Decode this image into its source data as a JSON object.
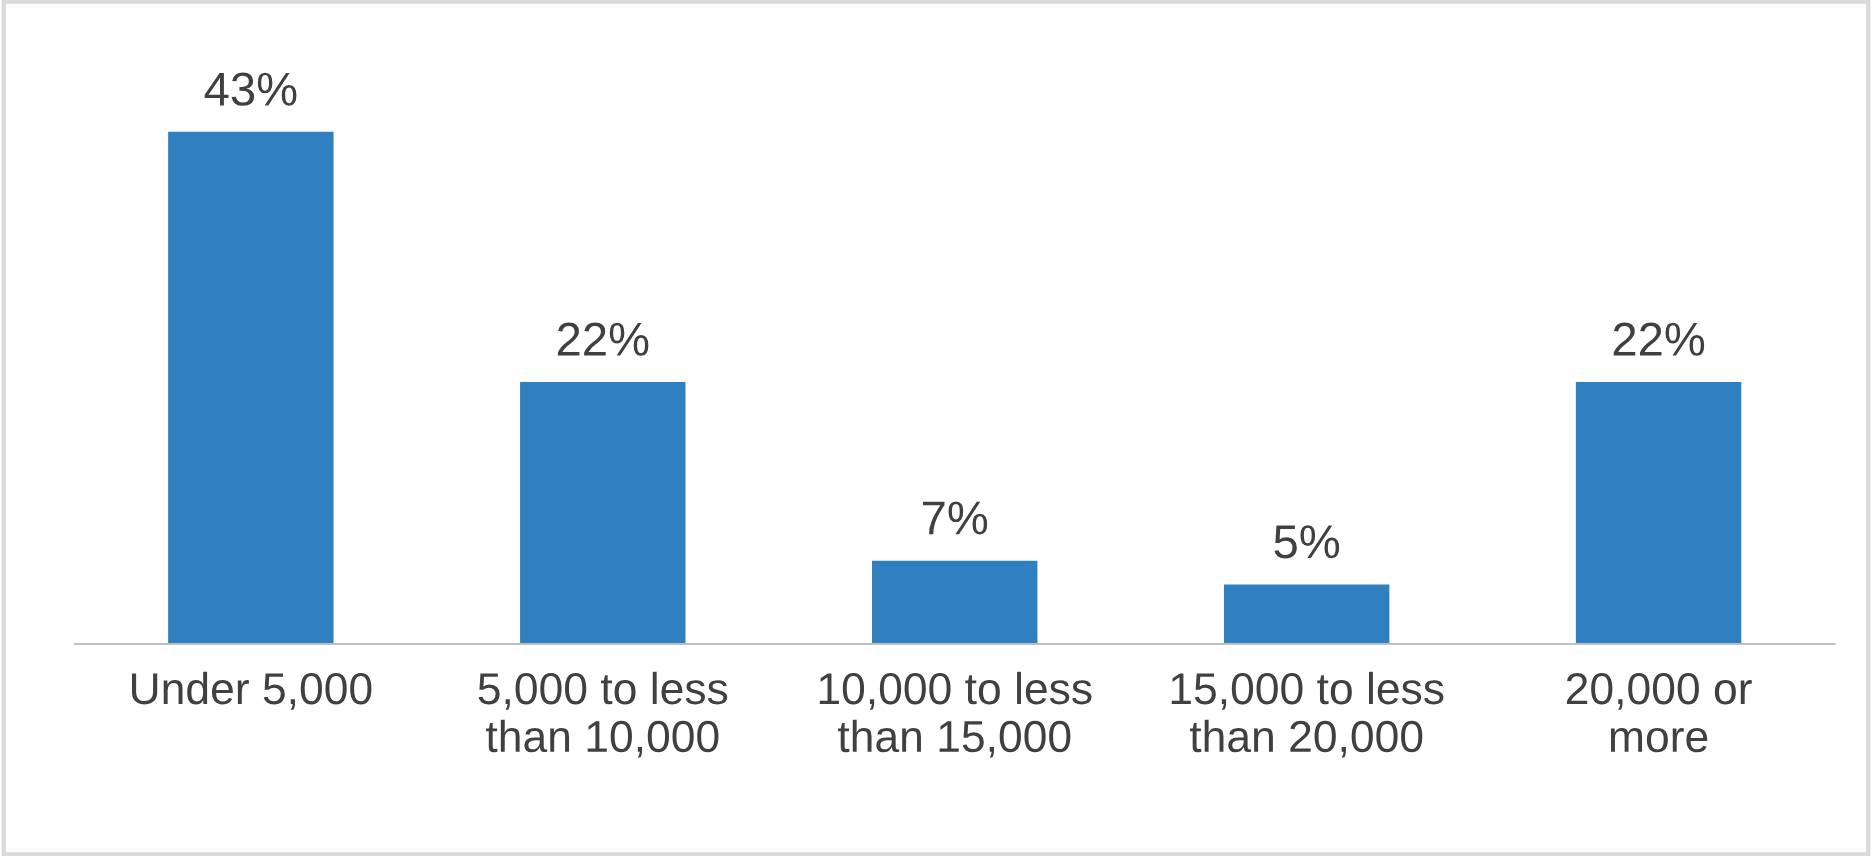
{
  "chart_data": {
    "type": "bar",
    "categories": [
      "Under 5,000",
      "5,000 to less\nthan 10,000",
      "10,000 to less\nthan 15,000",
      "15,000 to less\nthan 20,000",
      "20,000 or\nmore"
    ],
    "values": [
      43,
      22,
      7,
      5,
      22
    ],
    "value_labels": [
      "43%",
      "22%",
      "7%",
      "5%",
      "22%"
    ],
    "color": "#2e80c0",
    "grid": false
  }
}
